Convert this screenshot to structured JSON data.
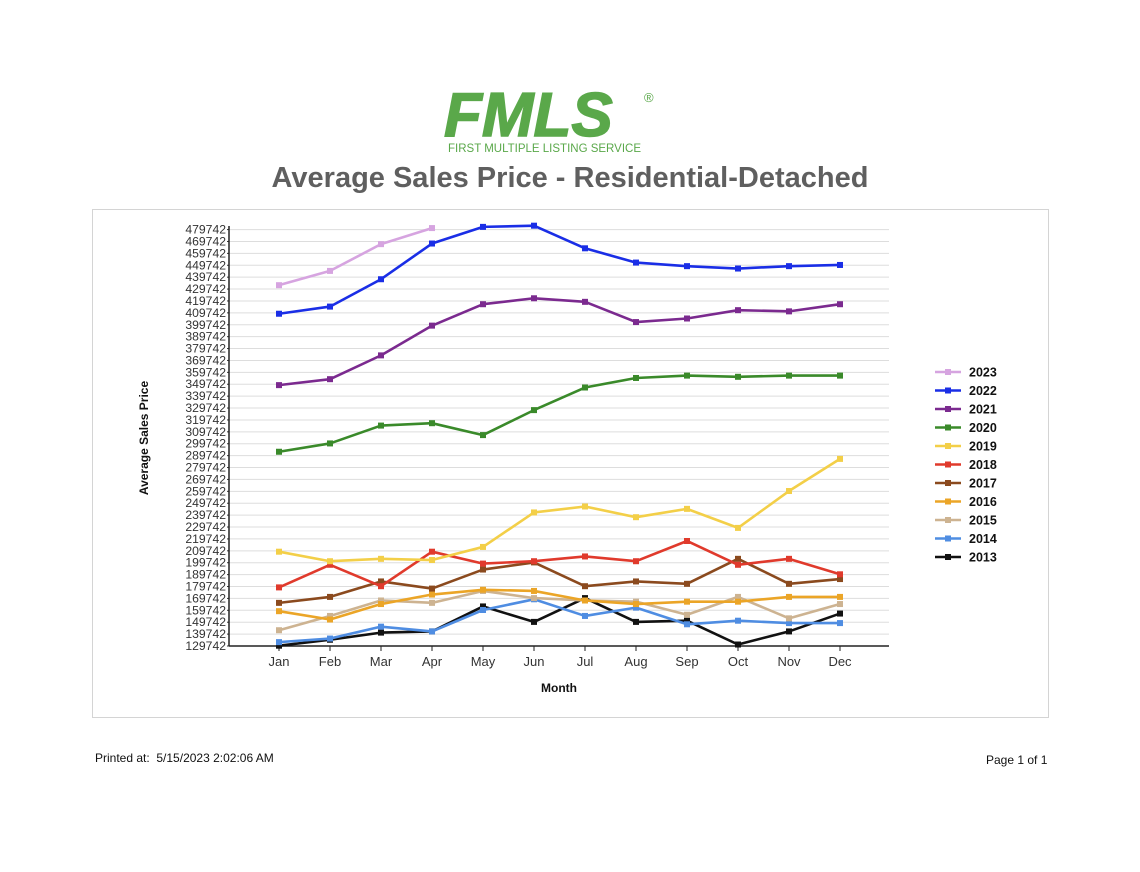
{
  "logo": {
    "name": "FMLS",
    "registered_mark": "®",
    "tagline": "FIRST MULTIPLE LISTING SERVICE",
    "color": "#5aa84a"
  },
  "title": "Average Sales Price - Residential-Detached",
  "footer": {
    "printed_label": "Printed at:",
    "printed_value": "5/15/2023 2:02:06 AM",
    "page": "Page 1 of 1"
  },
  "chart_data": {
    "type": "line",
    "title": "",
    "xlabel": "Month",
    "ylabel": "Average Sales Price",
    "categories": [
      "Jan",
      "Feb",
      "Mar",
      "Apr",
      "May",
      "Jun",
      "Jul",
      "Aug",
      "Sep",
      "Oct",
      "Nov",
      "Dec"
    ],
    "yticks": [
      129742,
      139742,
      149742,
      159742,
      169742,
      179742,
      189742,
      199742,
      209742,
      219742,
      229742,
      239742,
      249742,
      259742,
      269742,
      279742,
      289742,
      299742,
      309742,
      319742,
      329742,
      339742,
      349742,
      359742,
      369742,
      379742,
      389742,
      399742,
      409742,
      419742,
      429742,
      439742,
      449742,
      459742,
      469742,
      479742
    ],
    "ylim": [
      129742,
      482742
    ],
    "grid": true,
    "legend_position": "right",
    "series": [
      {
        "name": "2023",
        "color": "#d6a4e0",
        "values": [
          433000,
          445000,
          467500,
          481000,
          null,
          null,
          null,
          null,
          null,
          null,
          null,
          null
        ]
      },
      {
        "name": "2022",
        "color": "#1a2ee6",
        "values": [
          409000,
          415000,
          438000,
          468000,
          482000,
          483000,
          464000,
          452000,
          449000,
          447000,
          449000,
          450000
        ]
      },
      {
        "name": "2021",
        "color": "#7b2a8f",
        "values": [
          349000,
          354000,
          374000,
          399000,
          417000,
          422000,
          419000,
          402000,
          405000,
          412000,
          411000,
          417000
        ]
      },
      {
        "name": "2020",
        "color": "#3a8a2a",
        "values": [
          293000,
          300000,
          315000,
          317000,
          307000,
          328000,
          347000,
          355000,
          357000,
          356000,
          357000,
          357000
        ]
      },
      {
        "name": "2019",
        "color": "#f3cf48",
        "values": [
          209000,
          201000,
          203000,
          202000,
          213000,
          242000,
          247000,
          238000,
          245000,
          229000,
          260000,
          287000
        ]
      },
      {
        "name": "2018",
        "color": "#e03a2c",
        "values": [
          179000,
          198000,
          180000,
          209000,
          199000,
          201000,
          205000,
          201000,
          218000,
          198000,
          203000,
          190000
        ]
      },
      {
        "name": "2017",
        "color": "#8b4a1e",
        "values": [
          166000,
          171000,
          184000,
          178000,
          194000,
          200000,
          180000,
          184000,
          182000,
          203000,
          182000,
          186000
        ]
      },
      {
        "name": "2016",
        "color": "#eba527",
        "values": [
          159000,
          152000,
          165000,
          173000,
          177000,
          176000,
          168000,
          165000,
          167000,
          167000,
          171000,
          171000
        ]
      },
      {
        "name": "2015",
        "color": "#cdb391",
        "values": [
          143000,
          155000,
          168000,
          166000,
          176000,
          170000,
          168000,
          167000,
          156000,
          171000,
          153000,
          165000
        ]
      },
      {
        "name": "2014",
        "color": "#4f8de2",
        "values": [
          133000,
          136000,
          146000,
          142000,
          160000,
          169000,
          155000,
          162000,
          148000,
          151000,
          149000,
          149000
        ]
      },
      {
        "name": "2013",
        "color": "#111111",
        "values": [
          130000,
          135000,
          141000,
          142000,
          163000,
          150000,
          170000,
          150000,
          151000,
          131000,
          142000,
          157000
        ]
      }
    ]
  }
}
